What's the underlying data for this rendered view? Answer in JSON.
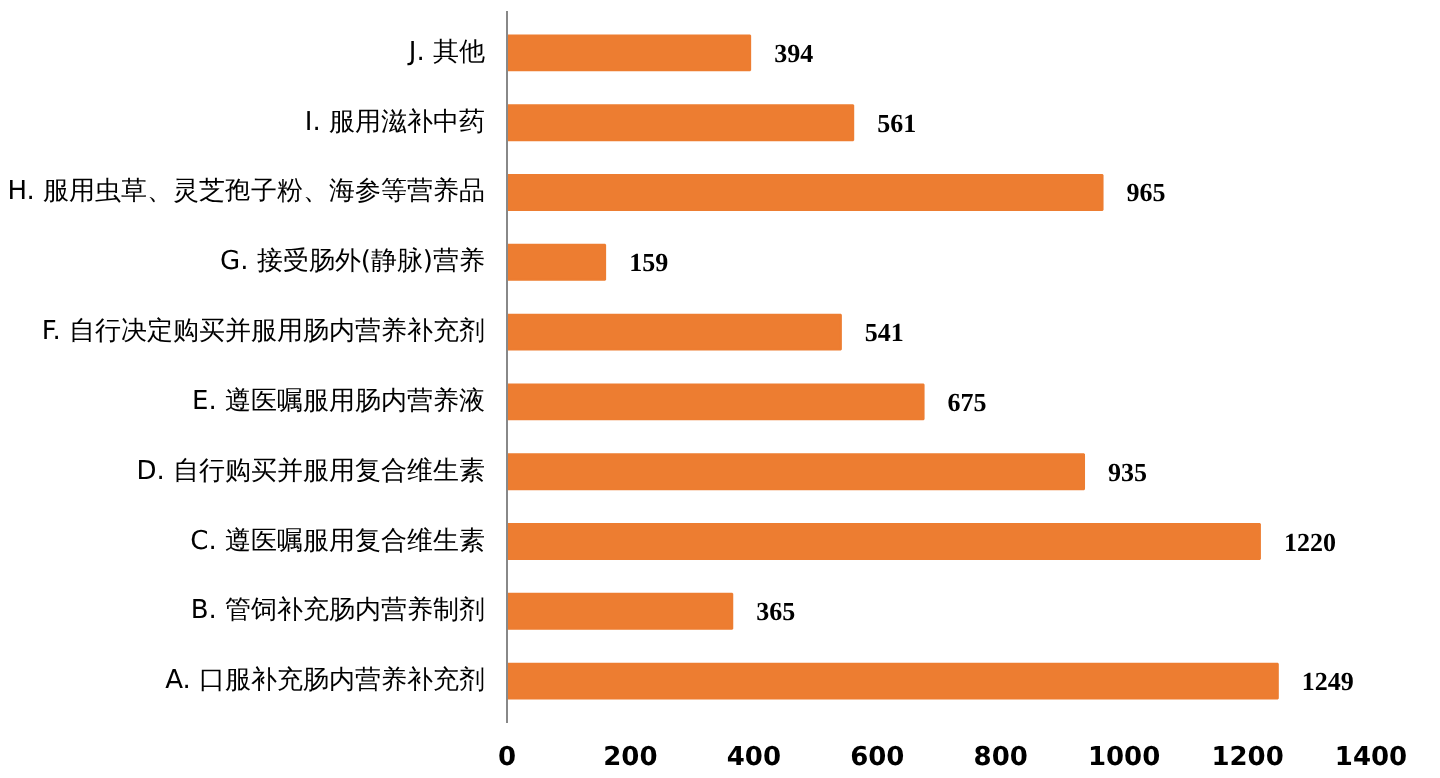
{
  "chart_data": {
    "type": "bar",
    "orientation": "horizontal",
    "categories": [
      "J. 其他",
      "I. 服用滋补中药",
      "H. 服用虫草、灵芝孢子粉、海参等营养品",
      "G. 接受肠外(静脉)营养",
      "F. 自行决定购买并服用肠内营养补充剂",
      "E. 遵医嘱服用肠内营养液",
      "D. 自行购买并服用复合维生素",
      "C. 遵医嘱服用复合维生素",
      "B. 管饲补充肠内营养制剂",
      "A. 口服补充肠内营养补充剂"
    ],
    "values": [
      394,
      561,
      965,
      159,
      541,
      675,
      935,
      1220,
      365,
      1249
    ],
    "color": "#ed7d31",
    "xlim": [
      0,
      1400
    ],
    "xticks": [
      0,
      200,
      400,
      600,
      800,
      1000,
      1200,
      1400
    ],
    "data_labels": true,
    "grid": false
  }
}
